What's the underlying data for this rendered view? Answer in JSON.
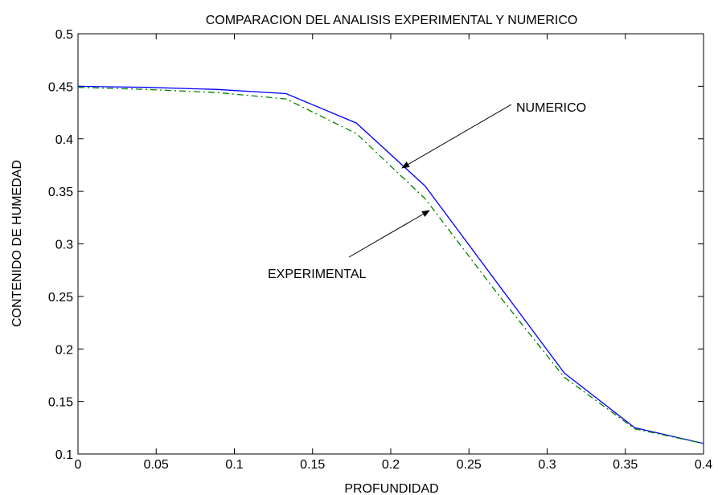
{
  "chart_data": {
    "type": "line",
    "title": "COMPARACION DEL  ANALISIS EXPERIMENTAL Y  NUMERICO",
    "xlabel": "PROFUNDIDAD",
    "ylabel": "CONTENIDO DE HUMEDAD",
    "xlim": [
      0,
      0.4
    ],
    "ylim": [
      0.1,
      0.5
    ],
    "xticks": [
      "0",
      "0.05",
      "0.1",
      "0.15",
      "0.2",
      "0.25",
      "0.3",
      "0.35",
      "0.4"
    ],
    "yticks": [
      "0.1",
      "0.15",
      "0.2",
      "0.25",
      "0.3",
      "0.35",
      "0.4",
      "0.45",
      "0.5"
    ],
    "grid": false,
    "series": [
      {
        "name": "NUMERICO",
        "color": "#0000ff",
        "style": "solid",
        "x": [
          0,
          0.044,
          0.089,
          0.133,
          0.178,
          0.222,
          0.267,
          0.311,
          0.356,
          0.4
        ],
        "y": [
          0.45,
          0.449,
          0.447,
          0.443,
          0.415,
          0.355,
          0.265,
          0.177,
          0.125,
          0.11
        ]
      },
      {
        "name": "EXPERIMENTAL",
        "color": "#008000",
        "style": "dashdot",
        "x": [
          0,
          0.044,
          0.089,
          0.133,
          0.178,
          0.222,
          0.267,
          0.311,
          0.356,
          0.4
        ],
        "y": [
          0.449,
          0.447,
          0.444,
          0.438,
          0.405,
          0.343,
          0.255,
          0.173,
          0.124,
          0.11
        ]
      }
    ],
    "annotations": [
      {
        "text": "NUMERICO",
        "arrow_to": [
          0.207,
          0.373
        ]
      },
      {
        "text": "EXPERIMENTAL",
        "arrow_to": [
          0.225,
          0.343
        ]
      }
    ]
  }
}
